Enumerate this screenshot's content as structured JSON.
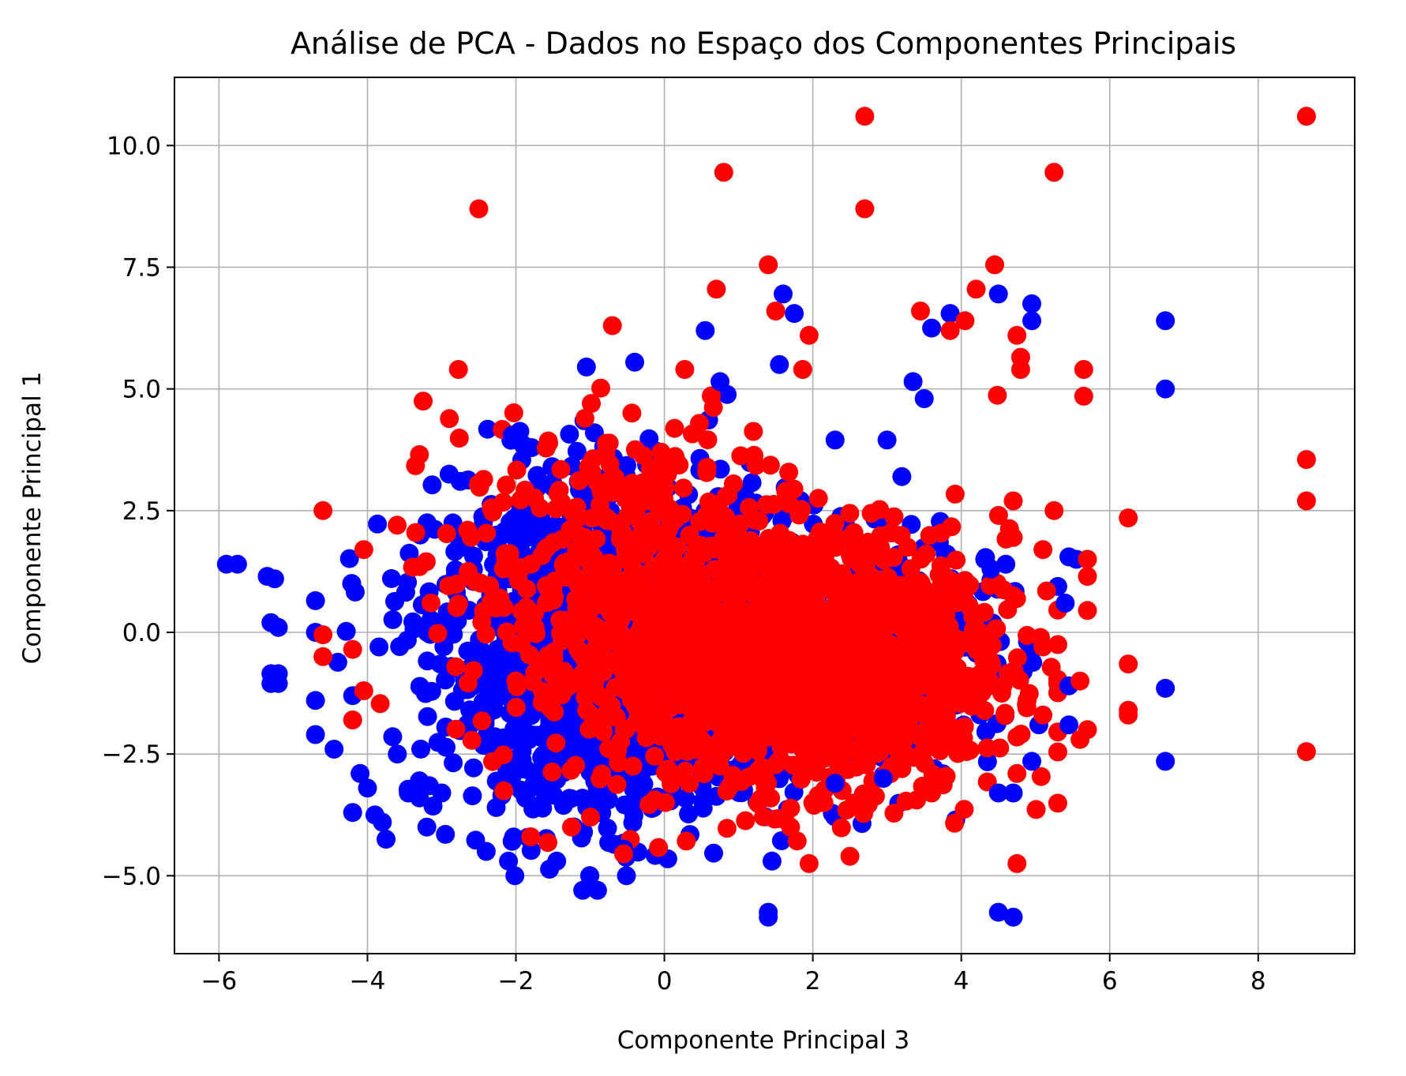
{
  "chart_data": {
    "type": "scatter",
    "title": "Análise de PCA - Dados no Espaço dos Componentes Principais",
    "xlabel": "Componente Principal 3",
    "ylabel": "Componente Principal 1",
    "xlim": [
      -6.6,
      9.3
    ],
    "ylim": [
      -6.6,
      11.4
    ],
    "grid": true,
    "x_ticks": [
      -6,
      -4,
      -2,
      0,
      2,
      4,
      6,
      8
    ],
    "x_tick_labels": [
      "−6",
      "−4",
      "−2",
      "0",
      "2",
      "4",
      "6",
      "8"
    ],
    "y_ticks": [
      -5,
      -2.5,
      0,
      2.5,
      5,
      7.5,
      10
    ],
    "y_tick_labels": [
      "−5.0",
      "−2.5",
      "0.0",
      "2.5",
      "5.0",
      "7.5",
      "10.0"
    ],
    "series": [
      {
        "color": "#0000ff",
        "clusters": [
          {
            "cx": -0.6,
            "cy": -0.4,
            "sx": 1.2,
            "sy": 1.6,
            "n": 1800
          },
          {
            "cx": 2.6,
            "cy": -0.5,
            "sx": 0.9,
            "sy": 1.2,
            "n": 450
          }
        ],
        "points": [
          [
            -5.9,
            1.4
          ],
          [
            -5.75,
            1.4
          ],
          [
            -5.35,
            1.15
          ],
          [
            -5.25,
            1.1
          ],
          [
            -5.3,
            0.2
          ],
          [
            -5.2,
            0.1
          ],
          [
            -5.3,
            -0.85
          ],
          [
            -5.2,
            -0.85
          ],
          [
            -5.3,
            -1.05
          ],
          [
            -5.2,
            -1.05
          ],
          [
            -4.7,
            0.65
          ],
          [
            -4.7,
            0.0
          ],
          [
            -4.7,
            -1.4
          ],
          [
            -4.7,
            -2.1
          ],
          [
            -4.45,
            -2.4
          ],
          [
            -4.2,
            -1.3
          ],
          [
            -4.2,
            -3.7
          ],
          [
            -4.1,
            -2.9
          ],
          [
            -4.0,
            -3.2
          ],
          [
            -3.9,
            -3.75
          ],
          [
            -3.8,
            -3.9
          ],
          [
            -3.75,
            -4.25
          ],
          [
            -3.45,
            -3.3
          ],
          [
            -3.3,
            -3.4
          ],
          [
            -3.3,
            -3.05
          ],
          [
            -3.2,
            -4.0
          ],
          [
            -3.0,
            -3.3
          ],
          [
            -2.95,
            -4.15
          ],
          [
            -2.9,
            3.25
          ],
          [
            -2.75,
            3.1
          ],
          [
            -2.4,
            -4.5
          ],
          [
            -2.1,
            -4.7
          ],
          [
            -2.05,
            4.05
          ],
          [
            -1.9,
            3.85
          ],
          [
            -1.45,
            -4.7
          ],
          [
            -1.1,
            -5.3
          ],
          [
            -1.05,
            5.45
          ],
          [
            -0.9,
            -5.3
          ],
          [
            -0.4,
            5.55
          ],
          [
            -0.55,
            -4.45
          ],
          [
            0.55,
            6.2
          ],
          [
            0.75,
            5.15
          ],
          [
            1.4,
            -5.75
          ],
          [
            1.4,
            -5.85
          ],
          [
            1.45,
            -4.7
          ],
          [
            1.55,
            5.5
          ],
          [
            1.6,
            6.95
          ],
          [
            1.75,
            6.55
          ],
          [
            3.35,
            5.15
          ],
          [
            3.5,
            4.8
          ],
          [
            3.6,
            6.25
          ],
          [
            3.85,
            6.55
          ],
          [
            4.5,
            6.95
          ],
          [
            4.95,
            6.4
          ],
          [
            4.95,
            6.75
          ],
          [
            6.75,
            6.4
          ],
          [
            6.75,
            5.0
          ],
          [
            6.75,
            -1.15
          ],
          [
            6.75,
            -2.65
          ],
          [
            5.45,
            1.55
          ],
          [
            5.55,
            1.5
          ],
          [
            5.4,
            0.6
          ],
          [
            5.45,
            -1.1
          ],
          [
            5.45,
            -1.9
          ],
          [
            4.5,
            -3.3
          ],
          [
            4.7,
            -3.3
          ],
          [
            4.5,
            -5.75
          ],
          [
            4.7,
            -5.85
          ],
          [
            4.95,
            -2.65
          ],
          [
            4.4,
            1.3
          ],
          [
            4.6,
            1.4
          ],
          [
            3.0,
            3.95
          ],
          [
            2.3,
            3.95
          ],
          [
            3.2,
            3.2
          ],
          [
            2.3,
            -3.1
          ],
          [
            2.95,
            -3.0
          ]
        ]
      },
      {
        "color": "#ff0000",
        "clusters": [
          {
            "cx": 2.0,
            "cy": -0.7,
            "sx": 1.3,
            "sy": 1.3,
            "n": 1300
          },
          {
            "cx": -0.2,
            "cy": 0.8,
            "sx": 1.3,
            "sy": 1.7,
            "n": 650
          }
        ],
        "points": [
          [
            -2.5,
            8.7
          ],
          [
            0.8,
            9.45
          ],
          [
            2.7,
            10.6
          ],
          [
            2.7,
            8.7
          ],
          [
            1.4,
            7.55
          ],
          [
            0.7,
            7.05
          ],
          [
            -0.7,
            6.3
          ],
          [
            1.5,
            6.6
          ],
          [
            1.95,
            6.1
          ],
          [
            5.25,
            9.45
          ],
          [
            8.65,
            10.6
          ],
          [
            8.65,
            3.55
          ],
          [
            8.65,
            2.7
          ],
          [
            8.65,
            -2.45
          ],
          [
            4.45,
            7.55
          ],
          [
            4.2,
            7.05
          ],
          [
            4.05,
            6.4
          ],
          [
            3.45,
            6.6
          ],
          [
            3.85,
            6.2
          ],
          [
            4.75,
            6.1
          ],
          [
            4.8,
            5.4
          ],
          [
            4.8,
            5.65
          ],
          [
            5.65,
            5.4
          ],
          [
            5.65,
            4.85
          ],
          [
            6.25,
            2.35
          ],
          [
            6.25,
            -0.65
          ],
          [
            6.25,
            -1.6
          ],
          [
            6.25,
            -1.7
          ],
          [
            5.7,
            1.5
          ],
          [
            5.7,
            1.15
          ],
          [
            5.7,
            0.45
          ],
          [
            5.6,
            -1.0
          ],
          [
            5.6,
            -2.2
          ],
          [
            5.7,
            -2.0
          ],
          [
            5.25,
            2.5
          ],
          [
            5.1,
            1.7
          ],
          [
            5.15,
            0.85
          ],
          [
            5.1,
            -0.3
          ],
          [
            5.1,
            -1.7
          ],
          [
            4.75,
            -2.15
          ],
          [
            4.75,
            -2.9
          ],
          [
            4.75,
            -4.75
          ],
          [
            4.7,
            2.7
          ],
          [
            4.7,
            1.95
          ],
          [
            4.7,
            0.75
          ],
          [
            4.7,
            -0.8
          ],
          [
            -3.25,
            4.75
          ],
          [
            -3.3,
            3.65
          ],
          [
            -4.6,
            2.5
          ],
          [
            -4.6,
            -0.05
          ],
          [
            -4.6,
            -0.5
          ],
          [
            -4.05,
            1.7
          ],
          [
            -4.2,
            -0.35
          ],
          [
            -4.2,
            -1.8
          ],
          [
            -4.05,
            -1.2
          ],
          [
            -3.6,
            2.2
          ],
          [
            -3.35,
            2.05
          ],
          [
            -3.3,
            1.35
          ],
          [
            -1.8,
            -4.2
          ],
          [
            -1.25,
            -4.0
          ],
          [
            -0.55,
            -4.55
          ],
          [
            2.5,
            -4.6
          ],
          [
            1.95,
            -4.75
          ],
          [
            1.7,
            -4.0
          ],
          [
            2.0,
            -3.5
          ],
          [
            2.15,
            -3.5
          ],
          [
            3.6,
            -3.3
          ],
          [
            3.2,
            -2.8
          ]
        ]
      }
    ]
  }
}
